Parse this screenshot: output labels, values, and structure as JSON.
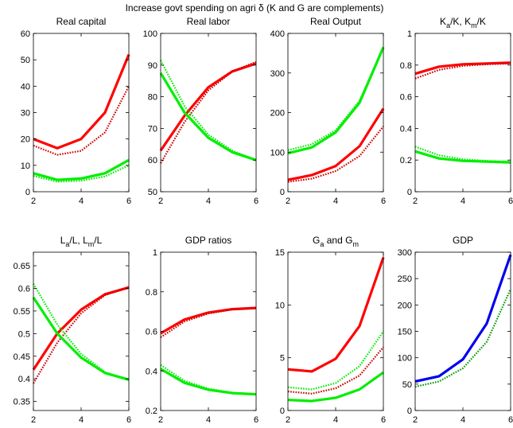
{
  "figure": {
    "suptitle": "Increase govt spending on agri δ (K and G are complements)"
  },
  "chart_data": [
    {
      "type": "line",
      "title": "Real capital",
      "x": [
        2,
        3,
        4,
        5,
        6
      ],
      "xlim": [
        2,
        6
      ],
      "xticks": [
        2,
        4,
        6
      ],
      "ylim": [
        0,
        60
      ],
      "yticks": [
        0,
        10,
        20,
        30,
        40,
        50,
        60
      ],
      "series": [
        {
          "color": "#ff0000",
          "style": "solid",
          "values": [
            20,
            16.5,
            20,
            30,
            52
          ]
        },
        {
          "color": "#cc0000",
          "style": "dotted",
          "values": [
            17.5,
            14,
            15.5,
            22.5,
            40
          ]
        },
        {
          "color": "#00ee00",
          "style": "solid",
          "values": [
            7,
            4.5,
            5,
            7,
            12
          ]
        },
        {
          "color": "#00ee00",
          "style": "dotted",
          "values": [
            6,
            3.8,
            4.2,
            5.8,
            10
          ]
        }
      ]
    },
    {
      "type": "line",
      "title": "Real labor",
      "x": [
        2,
        3,
        4,
        5,
        6
      ],
      "xlim": [
        2,
        6
      ],
      "xticks": [
        2,
        4,
        6
      ],
      "ylim": [
        50,
        100
      ],
      "yticks": [
        50,
        60,
        70,
        80,
        90,
        100
      ],
      "series": [
        {
          "color": "#ff0000",
          "style": "solid",
          "values": [
            63,
            74,
            83,
            88,
            90.5
          ]
        },
        {
          "color": "#cc0000",
          "style": "dotted",
          "values": [
            59,
            72,
            82,
            88,
            91
          ]
        },
        {
          "color": "#00ee00",
          "style": "solid",
          "values": [
            87.5,
            75,
            67,
            62.5,
            60
          ]
        },
        {
          "color": "#00ee00",
          "style": "dotted",
          "values": [
            91.5,
            77,
            68,
            63,
            60
          ]
        }
      ]
    },
    {
      "type": "line",
      "title": "Real Output",
      "x": [
        2,
        3,
        4,
        5,
        6
      ],
      "xlim": [
        2,
        6
      ],
      "xticks": [
        2,
        4,
        6
      ],
      "ylim": [
        0,
        400
      ],
      "yticks": [
        0,
        100,
        200,
        300,
        400
      ],
      "series": [
        {
          "color": "#ff0000",
          "style": "solid",
          "values": [
            30,
            42,
            65,
            115,
            210
          ]
        },
        {
          "color": "#cc0000",
          "style": "dotted",
          "values": [
            25,
            33,
            52,
            90,
            165
          ]
        },
        {
          "color": "#00ee00",
          "style": "solid",
          "values": [
            97,
            112,
            150,
            225,
            365
          ]
        },
        {
          "color": "#00ee00",
          "style": "dotted",
          "values": [
            105,
            120,
            155,
            230,
            362
          ]
        }
      ]
    },
    {
      "type": "line",
      "title": "K_a/K, K_m/K",
      "title_parts": {
        "p1": "K",
        "s1": "a",
        "p2": "/K, K",
        "s2": "m",
        "p3": "/K"
      },
      "x": [
        2,
        3,
        4,
        5,
        6
      ],
      "xlim": [
        2,
        6
      ],
      "xticks": [
        2,
        4,
        6
      ],
      "ylim": [
        0,
        1
      ],
      "yticks": [
        0,
        0.2,
        0.4,
        0.6,
        0.8,
        1
      ],
      "series": [
        {
          "color": "#ff0000",
          "style": "solid",
          "values": [
            0.745,
            0.79,
            0.805,
            0.81,
            0.815
          ]
        },
        {
          "color": "#cc0000",
          "style": "dotted",
          "values": [
            0.715,
            0.77,
            0.795,
            0.805,
            0.81
          ]
        },
        {
          "color": "#00ee00",
          "style": "solid",
          "values": [
            0.255,
            0.21,
            0.195,
            0.19,
            0.185
          ]
        },
        {
          "color": "#00ee00",
          "style": "dotted",
          "values": [
            0.285,
            0.23,
            0.205,
            0.195,
            0.19
          ]
        }
      ]
    },
    {
      "type": "line",
      "title": "L_a/L, L_m/L",
      "title_parts": {
        "p1": "L",
        "s1": "a",
        "p2": "/L, L",
        "s2": "m",
        "p3": "/L"
      },
      "x": [
        2,
        3,
        4,
        5,
        6
      ],
      "xlim": [
        2,
        6
      ],
      "xticks": [
        2,
        4,
        6
      ],
      "ylim": [
        0.33,
        0.68
      ],
      "yticks": [
        0.35,
        0.4,
        0.45,
        0.5,
        0.55,
        0.6,
        0.65
      ],
      "series": [
        {
          "color": "#ff0000",
          "style": "solid",
          "values": [
            0.42,
            0.5,
            0.553,
            0.587,
            0.602
          ]
        },
        {
          "color": "#cc0000",
          "style": "dotted",
          "values": [
            0.39,
            0.48,
            0.545,
            0.585,
            0.603
          ]
        },
        {
          "color": "#00ee00",
          "style": "solid",
          "values": [
            0.58,
            0.5,
            0.447,
            0.413,
            0.398
          ]
        },
        {
          "color": "#00ee00",
          "style": "dotted",
          "values": [
            0.61,
            0.52,
            0.455,
            0.415,
            0.397
          ]
        }
      ]
    },
    {
      "type": "line",
      "title": "GDP ratios",
      "x": [
        2,
        3,
        4,
        5,
        6
      ],
      "xlim": [
        2,
        6
      ],
      "xticks": [
        2,
        4,
        6
      ],
      "ylim": [
        0.2,
        1
      ],
      "yticks": [
        0.2,
        0.4,
        0.6,
        0.8,
        1
      ],
      "series": [
        {
          "color": "#ff0000",
          "style": "solid",
          "values": [
            0.59,
            0.66,
            0.695,
            0.712,
            0.718
          ]
        },
        {
          "color": "#cc0000",
          "style": "dotted",
          "values": [
            0.57,
            0.65,
            0.69,
            0.71,
            0.717
          ]
        },
        {
          "color": "#00ee00",
          "style": "solid",
          "values": [
            0.41,
            0.34,
            0.305,
            0.288,
            0.282
          ]
        },
        {
          "color": "#00ee00",
          "style": "dotted",
          "values": [
            0.43,
            0.35,
            0.31,
            0.29,
            0.283
          ]
        }
      ]
    },
    {
      "type": "line",
      "title": "G_a and G_m",
      "title_parts": {
        "p1": "G",
        "s1": "a",
        "p2": " and G",
        "s2": "m",
        "p3": ""
      },
      "x": [
        2,
        3,
        4,
        5,
        6
      ],
      "xlim": [
        2,
        6
      ],
      "xticks": [
        2,
        4,
        6
      ],
      "ylim": [
        0,
        15
      ],
      "yticks": [
        0,
        5,
        10,
        15
      ],
      "series": [
        {
          "color": "#ff0000",
          "style": "solid",
          "values": [
            3.9,
            3.7,
            4.9,
            8,
            14.5
          ]
        },
        {
          "color": "#cc0000",
          "style": "dotted",
          "values": [
            1.8,
            1.6,
            2.1,
            3.3,
            6
          ]
        },
        {
          "color": "#00ee00",
          "style": "solid",
          "values": [
            1,
            0.9,
            1.2,
            2,
            3.6
          ]
        },
        {
          "color": "#00ee00",
          "style": "dotted",
          "values": [
            2.2,
            2,
            2.6,
            4.2,
            7.5
          ]
        }
      ]
    },
    {
      "type": "line",
      "title": "GDP",
      "x": [
        2,
        3,
        4,
        5,
        6
      ],
      "xlim": [
        2,
        6
      ],
      "xticks": [
        2,
        4,
        6
      ],
      "ylim": [
        0,
        300
      ],
      "yticks": [
        0,
        50,
        100,
        150,
        200,
        250,
        300
      ],
      "series": [
        {
          "color": "#0000ee",
          "style": "solid",
          "values": [
            55,
            65,
            97,
            165,
            295
          ]
        },
        {
          "color": "#009900",
          "style": "dotted",
          "values": [
            45,
            55,
            80,
            130,
            230
          ]
        }
      ]
    }
  ]
}
